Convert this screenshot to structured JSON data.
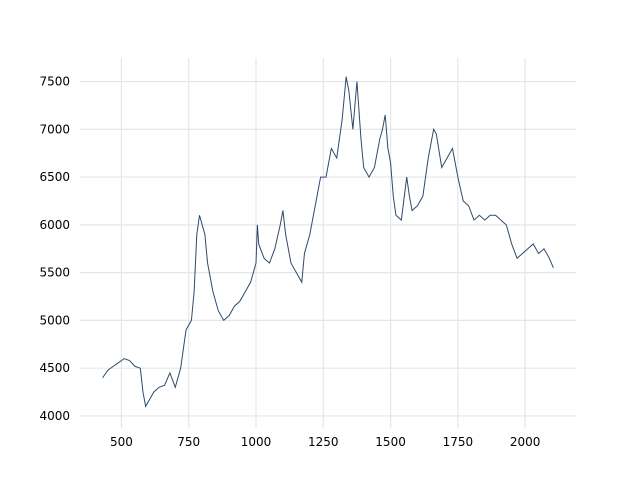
{
  "chart_data": {
    "type": "line",
    "x": [
      430,
      450,
      470,
      490,
      510,
      530,
      550,
      570,
      580,
      590,
      600,
      620,
      640,
      660,
      680,
      700,
      720,
      740,
      760,
      770,
      780,
      790,
      800,
      810,
      820,
      840,
      860,
      880,
      900,
      920,
      940,
      960,
      980,
      1000,
      1005,
      1010,
      1030,
      1050,
      1070,
      1090,
      1100,
      1110,
      1130,
      1150,
      1170,
      1180,
      1200,
      1220,
      1240,
      1260,
      1280,
      1300,
      1320,
      1335,
      1345,
      1360,
      1375,
      1390,
      1400,
      1420,
      1440,
      1460,
      1470,
      1480,
      1490,
      1500,
      1510,
      1520,
      1540,
      1560,
      1570,
      1580,
      1600,
      1620,
      1640,
      1660,
      1670,
      1690,
      1710,
      1730,
      1750,
      1770,
      1790,
      1810,
      1830,
      1850,
      1870,
      1890,
      1910,
      1930,
      1950,
      1970,
      1990,
      2010,
      2030,
      2050,
      2070,
      2090,
      2105
    ],
    "series": [
      {
        "color": "#2e4a6b",
        "values": [
          4400,
          4480,
          4520,
          4560,
          4600,
          4580,
          4520,
          4500,
          4250,
          4100,
          4150,
          4250,
          4300,
          4320,
          4450,
          4300,
          4500,
          4900,
          5000,
          5300,
          5900,
          6100,
          6000,
          5900,
          5600,
          5300,
          5100,
          5000,
          5050,
          5150,
          5200,
          5300,
          5400,
          5600,
          6000,
          5800,
          5650,
          5600,
          5750,
          6000,
          6150,
          5900,
          5600,
          5500,
          5400,
          5700,
          5900,
          6200,
          6500,
          6500,
          6800,
          6700,
          7100,
          7550,
          7400,
          7000,
          7500,
          6900,
          6600,
          6500,
          6600,
          6900,
          7000,
          7150,
          6800,
          6650,
          6300,
          6100,
          6050,
          6500,
          6300,
          6150,
          6200,
          6300,
          6700,
          7000,
          6950,
          6600,
          6700,
          6800,
          6500,
          6250,
          6200,
          6050,
          6100,
          6050,
          6100,
          6100,
          6050,
          6000,
          5800,
          5650,
          5700,
          5750,
          5800,
          5700,
          5750,
          5650,
          5550
        ]
      }
    ],
    "xlim": [
      346,
      2189
    ],
    "ylim": [
      3874,
      7746
    ],
    "xticks": [
      500,
      750,
      1000,
      1250,
      1500,
      1750,
      2000
    ],
    "yticks": [
      4000,
      4500,
      5000,
      5500,
      6000,
      6500,
      7000,
      7500
    ],
    "grid": true
  }
}
